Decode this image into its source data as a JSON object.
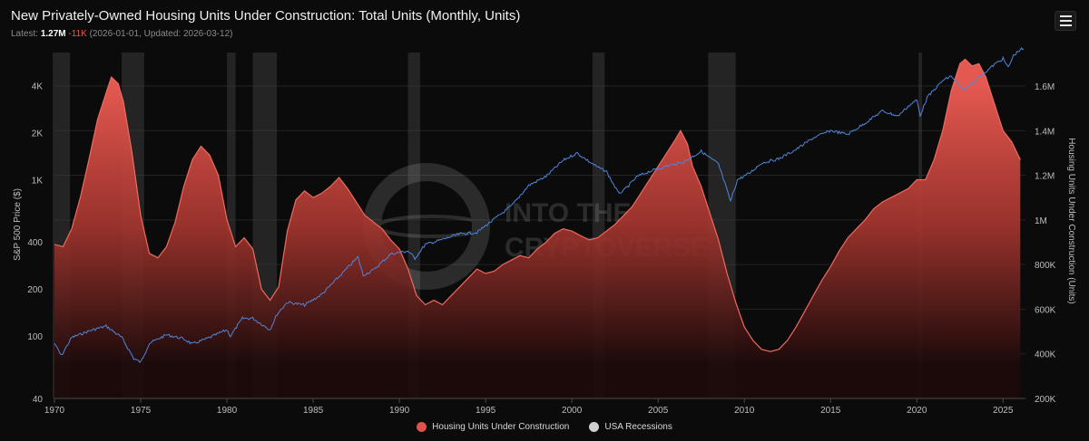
{
  "header": {
    "title": "New Privately-Owned Housing Units Under Construction: Total Units (Monthly, Units)",
    "latest_label": "Latest:",
    "latest_value": "1.27M",
    "latest_change": "-11K",
    "latest_meta": "(2026-01-01, Updated: 2026-03-12)"
  },
  "menu": {
    "icon": "hamburger-menu-icon"
  },
  "watermark": {
    "line1": "INTO THE",
    "line2": "CRYPTOVERSE"
  },
  "colors": {
    "housing": "#e0524c",
    "sp500": "#4f86d9",
    "recession": "#3a3a3a",
    "grid": "#242424",
    "axis_text": "#bdbdbd"
  },
  "legend": [
    {
      "label": "Housing Units Under Construction",
      "color": "#e0524c"
    },
    {
      "label": "USA Recessions",
      "color": "#cfcfcf"
    }
  ],
  "chart_data": {
    "type": "area",
    "title": "New Privately-Owned Housing Units Under Construction: Total Units (Monthly, Units)",
    "x_range": [
      1970,
      2026.3
    ],
    "x_ticks": [
      1970,
      1975,
      1980,
      1985,
      1990,
      1995,
      2000,
      2005,
      2010,
      2015,
      2020,
      2025
    ],
    "x_tick_labels": [
      "1970",
      "1975",
      "1980",
      "1985",
      "1990",
      "1995",
      "2000",
      "2005",
      "2010",
      "2015",
      "2020",
      "2025"
    ],
    "y_left": {
      "label": "S&P 500 Price ($)",
      "scale": "log",
      "range": [
        40,
        6500
      ],
      "ticks": [
        40,
        100,
        200,
        400,
        1000,
        2000,
        4000
      ],
      "tick_labels": [
        "40",
        "100",
        "200",
        "400",
        "1K",
        "2K",
        "4K"
      ]
    },
    "y_right": {
      "label": "Housing Units Under Construction (Units)",
      "scale": "linear",
      "range": [
        200000,
        1750000
      ],
      "ticks": [
        200000,
        400000,
        600000,
        800000,
        1000000,
        1200000,
        1400000,
        1600000
      ],
      "tick_labels": [
        "200K",
        "400K",
        "600K",
        "800K",
        "1M",
        "1.2M",
        "1.4M",
        "1.6M"
      ]
    },
    "recessions": [
      [
        1969.9,
        1970.9
      ],
      [
        1973.9,
        1975.2
      ],
      [
        1980.0,
        1980.5
      ],
      [
        1981.5,
        1982.9
      ],
      [
        1990.5,
        1991.2
      ],
      [
        2001.2,
        2001.9
      ],
      [
        2007.9,
        2009.5
      ],
      [
        2020.1,
        2020.3
      ]
    ],
    "series": [
      {
        "name": "Housing Units Under Construction",
        "axis": "right",
        "type": "area",
        "points": [
          [
            1970.0,
            890000
          ],
          [
            1970.5,
            880000
          ],
          [
            1971.0,
            960000
          ],
          [
            1971.5,
            1100000
          ],
          [
            1972.0,
            1270000
          ],
          [
            1972.5,
            1450000
          ],
          [
            1973.0,
            1570000
          ],
          [
            1973.3,
            1640000
          ],
          [
            1973.7,
            1610000
          ],
          [
            1974.0,
            1530000
          ],
          [
            1974.5,
            1300000
          ],
          [
            1975.0,
            1020000
          ],
          [
            1975.5,
            850000
          ],
          [
            1976.0,
            830000
          ],
          [
            1976.5,
            880000
          ],
          [
            1977.0,
            990000
          ],
          [
            1977.5,
            1150000
          ],
          [
            1978.0,
            1270000
          ],
          [
            1978.5,
            1330000
          ],
          [
            1979.0,
            1290000
          ],
          [
            1979.5,
            1200000
          ],
          [
            1980.0,
            1000000
          ],
          [
            1980.5,
            880000
          ],
          [
            1981.0,
            920000
          ],
          [
            1981.5,
            870000
          ],
          [
            1982.0,
            690000
          ],
          [
            1982.5,
            640000
          ],
          [
            1983.0,
            700000
          ],
          [
            1983.5,
            950000
          ],
          [
            1984.0,
            1090000
          ],
          [
            1984.5,
            1130000
          ],
          [
            1985.0,
            1100000
          ],
          [
            1985.5,
            1120000
          ],
          [
            1986.0,
            1150000
          ],
          [
            1986.5,
            1190000
          ],
          [
            1987.0,
            1140000
          ],
          [
            1987.5,
            1080000
          ],
          [
            1988.0,
            1020000
          ],
          [
            1988.5,
            990000
          ],
          [
            1989.0,
            960000
          ],
          [
            1989.5,
            910000
          ],
          [
            1990.0,
            870000
          ],
          [
            1990.5,
            780000
          ],
          [
            1991.0,
            660000
          ],
          [
            1991.5,
            620000
          ],
          [
            1992.0,
            640000
          ],
          [
            1992.5,
            620000
          ],
          [
            1993.0,
            660000
          ],
          [
            1993.5,
            700000
          ],
          [
            1994.0,
            740000
          ],
          [
            1994.5,
            780000
          ],
          [
            1995.0,
            760000
          ],
          [
            1995.5,
            770000
          ],
          [
            1996.0,
            800000
          ],
          [
            1996.5,
            820000
          ],
          [
            1997.0,
            840000
          ],
          [
            1997.5,
            830000
          ],
          [
            1998.0,
            870000
          ],
          [
            1998.5,
            900000
          ],
          [
            1999.0,
            940000
          ],
          [
            1999.5,
            960000
          ],
          [
            2000.0,
            950000
          ],
          [
            2000.5,
            930000
          ],
          [
            2001.0,
            910000
          ],
          [
            2001.5,
            920000
          ],
          [
            2002.0,
            950000
          ],
          [
            2002.5,
            980000
          ],
          [
            2003.0,
            1020000
          ],
          [
            2003.5,
            1060000
          ],
          [
            2004.0,
            1120000
          ],
          [
            2004.5,
            1180000
          ],
          [
            2005.0,
            1240000
          ],
          [
            2005.5,
            1300000
          ],
          [
            2006.0,
            1360000
          ],
          [
            2006.3,
            1400000
          ],
          [
            2006.7,
            1340000
          ],
          [
            2007.0,
            1240000
          ],
          [
            2007.5,
            1150000
          ],
          [
            2008.0,
            1030000
          ],
          [
            2008.5,
            910000
          ],
          [
            2009.0,
            760000
          ],
          [
            2009.5,
            630000
          ],
          [
            2010.0,
            520000
          ],
          [
            2010.5,
            460000
          ],
          [
            2011.0,
            420000
          ],
          [
            2011.5,
            410000
          ],
          [
            2012.0,
            420000
          ],
          [
            2012.5,
            460000
          ],
          [
            2013.0,
            520000
          ],
          [
            2013.5,
            590000
          ],
          [
            2014.0,
            660000
          ],
          [
            2014.5,
            730000
          ],
          [
            2015.0,
            790000
          ],
          [
            2015.5,
            860000
          ],
          [
            2016.0,
            920000
          ],
          [
            2016.5,
            960000
          ],
          [
            2017.0,
            1000000
          ],
          [
            2017.5,
            1050000
          ],
          [
            2018.0,
            1080000
          ],
          [
            2018.5,
            1100000
          ],
          [
            2019.0,
            1120000
          ],
          [
            2019.5,
            1140000
          ],
          [
            2020.0,
            1180000
          ],
          [
            2020.5,
            1180000
          ],
          [
            2021.0,
            1270000
          ],
          [
            2021.5,
            1400000
          ],
          [
            2022.0,
            1580000
          ],
          [
            2022.5,
            1700000
          ],
          [
            2022.8,
            1720000
          ],
          [
            2023.2,
            1690000
          ],
          [
            2023.6,
            1700000
          ],
          [
            2024.0,
            1640000
          ],
          [
            2024.5,
            1520000
          ],
          [
            2025.0,
            1400000
          ],
          [
            2025.5,
            1350000
          ],
          [
            2026.0,
            1270000
          ]
        ]
      },
      {
        "name": "S&P 500 Price",
        "axis": "left",
        "type": "line",
        "points": [
          [
            1970.0,
            90
          ],
          [
            1970.4,
            75
          ],
          [
            1971.0,
            98
          ],
          [
            1972.0,
            108
          ],
          [
            1973.0,
            116
          ],
          [
            1973.9,
            98
          ],
          [
            1974.6,
            72
          ],
          [
            1975.0,
            68
          ],
          [
            1975.5,
            90
          ],
          [
            1976.5,
            102
          ],
          [
            1977.5,
            96
          ],
          [
            1978.0,
            89
          ],
          [
            1979.0,
            98
          ],
          [
            1980.0,
            110
          ],
          [
            1980.2,
            100
          ],
          [
            1980.9,
            130
          ],
          [
            1981.5,
            130
          ],
          [
            1982.5,
            110
          ],
          [
            1982.9,
            138
          ],
          [
            1983.5,
            165
          ],
          [
            1984.5,
            158
          ],
          [
            1985.5,
            185
          ],
          [
            1986.5,
            240
          ],
          [
            1987.6,
            320
          ],
          [
            1987.9,
            245
          ],
          [
            1988.5,
            265
          ],
          [
            1989.5,
            335
          ],
          [
            1990.5,
            350
          ],
          [
            1990.9,
            315
          ],
          [
            1991.5,
            385
          ],
          [
            1992.5,
            415
          ],
          [
            1993.5,
            450
          ],
          [
            1994.5,
            460
          ],
          [
            1995.5,
            560
          ],
          [
            1996.5,
            680
          ],
          [
            1997.5,
            920
          ],
          [
            1998.5,
            1050
          ],
          [
            1999.5,
            1330
          ],
          [
            2000.3,
            1480
          ],
          [
            2000.9,
            1330
          ],
          [
            2001.5,
            1200
          ],
          [
            2002.0,
            1130
          ],
          [
            2002.7,
            820
          ],
          [
            2003.0,
            850
          ],
          [
            2003.8,
            1050
          ],
          [
            2004.5,
            1130
          ],
          [
            2005.5,
            1220
          ],
          [
            2006.5,
            1300
          ],
          [
            2007.5,
            1520
          ],
          [
            2008.0,
            1380
          ],
          [
            2008.5,
            1260
          ],
          [
            2009.2,
            730
          ],
          [
            2009.6,
            1000
          ],
          [
            2010.3,
            1100
          ],
          [
            2011.0,
            1280
          ],
          [
            2012.0,
            1360
          ],
          [
            2013.0,
            1560
          ],
          [
            2014.0,
            1850
          ],
          [
            2015.0,
            2060
          ],
          [
            2016.0,
            1950
          ],
          [
            2017.0,
            2300
          ],
          [
            2018.0,
            2750
          ],
          [
            2018.9,
            2550
          ],
          [
            2019.5,
            2950
          ],
          [
            2020.0,
            3230
          ],
          [
            2020.2,
            2580
          ],
          [
            2020.6,
            3350
          ],
          [
            2021.0,
            3750
          ],
          [
            2021.5,
            4300
          ],
          [
            2022.0,
            4600
          ],
          [
            2022.7,
            3700
          ],
          [
            2023.0,
            3950
          ],
          [
            2023.5,
            4450
          ],
          [
            2024.0,
            4900
          ],
          [
            2024.5,
            5450
          ],
          [
            2025.0,
            5950
          ],
          [
            2025.3,
            5200
          ],
          [
            2025.6,
            6200
          ],
          [
            2026.0,
            6800
          ],
          [
            2026.2,
            6850
          ]
        ]
      }
    ]
  }
}
